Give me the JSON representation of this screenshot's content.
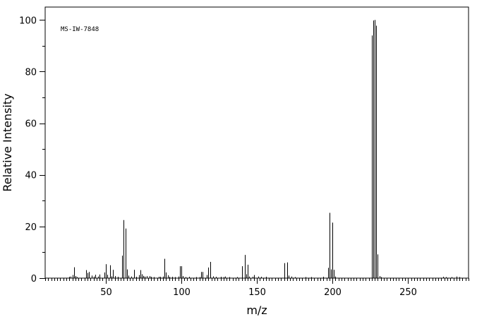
{
  "chart_data": {
    "type": "bar",
    "annotation": "MS-IW-7848",
    "xlabel": "m/z",
    "ylabel": "Relative Intensity",
    "xlim": [
      10,
      290
    ],
    "ylim": [
      0,
      105
    ],
    "x_major_ticks": [
      50,
      100,
      150,
      200,
      250
    ],
    "x_minor_step": 2,
    "y_major_ticks": [
      0,
      20,
      40,
      60,
      80,
      100
    ],
    "y_minor_step": 10,
    "grid": false,
    "legend": "none",
    "bar_color": "#000000",
    "x": [
      26,
      27,
      28,
      29,
      30,
      31,
      37,
      38,
      39,
      41,
      42,
      43,
      45,
      46,
      49,
      50,
      51,
      53,
      54,
      55,
      56,
      58,
      61,
      62,
      63,
      64,
      65,
      67,
      69,
      70,
      72,
      73,
      74,
      75,
      76,
      77,
      79,
      80,
      82,
      85,
      86,
      88,
      89,
      90,
      91,
      92,
      94,
      96,
      98,
      99,
      100,
      101,
      103,
      105,
      110,
      112,
      113,
      114,
      117,
      118,
      119,
      121,
      123,
      126,
      128,
      129,
      132,
      137,
      140,
      142,
      143,
      144,
      145,
      147,
      148,
      151,
      153,
      156,
      168,
      170,
      171,
      173,
      175,
      182,
      186,
      194,
      197,
      198,
      199,
      200,
      201,
      202,
      226,
      227,
      228,
      229,
      230,
      231,
      232,
      273,
      275,
      279,
      282,
      284
    ],
    "values": [
      0.5,
      0.6,
      1.2,
      4.2,
      0.8,
      0.4,
      3.1,
      2.0,
      2.4,
      1.0,
      0.6,
      1.3,
      0.6,
      1.4,
      2.2,
      5.4,
      1.3,
      5.0,
      0.7,
      3.2,
      0.8,
      0.5,
      8.7,
      22.5,
      19.2,
      3.4,
      1.0,
      0.6,
      3.2,
      0.5,
      1.2,
      3.1,
      1.5,
      0.9,
      0.6,
      0.8,
      0.8,
      0.5,
      0.4,
      0.5,
      0.5,
      0.6,
      7.5,
      2.2,
      1.1,
      0.5,
      0.5,
      0.4,
      0.6,
      4.6,
      4.6,
      0.8,
      0.4,
      0.5,
      0.4,
      0.4,
      2.4,
      2.4,
      1.2,
      4.1,
      6.3,
      0.7,
      0.5,
      0.5,
      0.4,
      0.6,
      0.4,
      0.4,
      4.6,
      9.0,
      1.5,
      5.2,
      0.6,
      0.5,
      1.2,
      0.6,
      0.5,
      0.5,
      5.8,
      6.1,
      1.0,
      0.6,
      0.4,
      0.4,
      0.4,
      0.5,
      4.0,
      25.3,
      3.4,
      21.5,
      3.2,
      0.6,
      94.0,
      99.8,
      100.0,
      97.8,
      9.2,
      0.8,
      0.4,
      0.5,
      0.4,
      0.4,
      0.6,
      0.4
    ]
  }
}
